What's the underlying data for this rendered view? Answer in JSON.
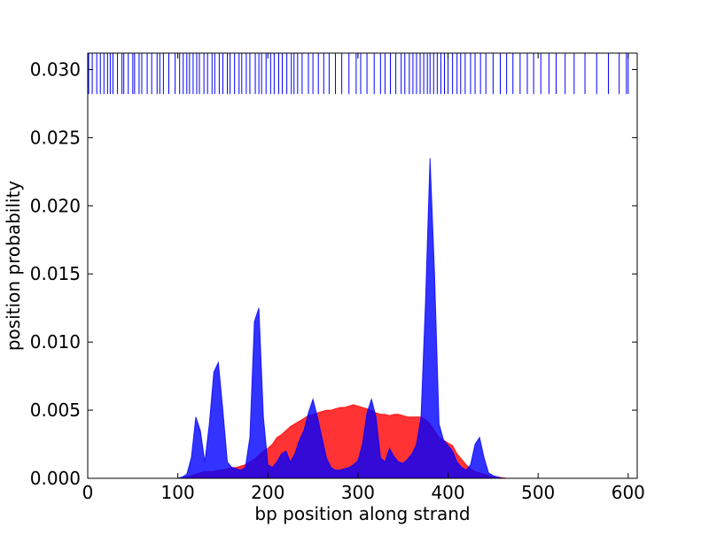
{
  "chart_data": {
    "type": "area",
    "xlabel": "bp position along strand",
    "ylabel": "position probability",
    "xlim": [
      0,
      610
    ],
    "ylim": [
      0,
      0.0312
    ],
    "xticks": [
      0,
      100,
      200,
      300,
      400,
      500,
      600
    ],
    "yticks": [
      {
        "value": 0,
        "label": "0.000"
      },
      {
        "value": 0.005,
        "label": "0.005"
      },
      {
        "value": 0.01,
        "label": "0.010"
      },
      {
        "value": 0.015,
        "label": "0.015"
      },
      {
        "value": 0.02,
        "label": "0.020"
      },
      {
        "value": 0.025,
        "label": "0.025"
      },
      {
        "value": 0.03,
        "label": "0.030"
      }
    ],
    "x": [
      100,
      105,
      110,
      115,
      120,
      125,
      130,
      135,
      140,
      145,
      150,
      155,
      160,
      165,
      170,
      175,
      180,
      185,
      190,
      195,
      200,
      205,
      210,
      215,
      220,
      225,
      230,
      235,
      240,
      245,
      250,
      255,
      260,
      265,
      270,
      275,
      280,
      285,
      290,
      295,
      300,
      305,
      310,
      315,
      320,
      325,
      330,
      335,
      340,
      345,
      350,
      355,
      360,
      365,
      370,
      375,
      380,
      385,
      390,
      395,
      400,
      405,
      410,
      415,
      420,
      425,
      430,
      435,
      440,
      445,
      450,
      455,
      460,
      465,
      470,
      475,
      480
    ],
    "series": [
      {
        "color": "#ff0000",
        "values": [
          0,
          0,
          0.0001,
          0.0002,
          0.0003,
          0.0004,
          0.0005,
          0.0005,
          0.0005,
          0.0006,
          0.0006,
          0.0007,
          0.0008,
          0.0008,
          0.0009,
          0.001,
          0.0012,
          0.0014,
          0.0017,
          0.002,
          0.0022,
          0.0025,
          0.003,
          0.0032,
          0.0035,
          0.0038,
          0.004,
          0.0042,
          0.0044,
          0.0046,
          0.0047,
          0.0048,
          0.0049,
          0.005,
          0.005,
          0.0051,
          0.0052,
          0.0052,
          0.0053,
          0.0054,
          0.0053,
          0.0052,
          0.0051,
          0.005,
          0.0048,
          0.0047,
          0.0047,
          0.0046,
          0.0047,
          0.0047,
          0.0046,
          0.0045,
          0.0045,
          0.0045,
          0.0045,
          0.0043,
          0.004,
          0.0035,
          0.003,
          0.0028,
          0.0026,
          0.0024,
          0.0018,
          0.0014,
          0.001,
          0.0007,
          0.0005,
          0.0004,
          0.0003,
          0.0002,
          0.0001,
          0.0001,
          5e-05,
          0,
          0,
          0,
          0
        ]
      },
      {
        "color": "#0000ff",
        "values": [
          0,
          0.0001,
          0.0003,
          0.0015,
          0.0045,
          0.0035,
          0.0012,
          0.004,
          0.0078,
          0.0085,
          0.005,
          0.0012,
          0.0008,
          0.0007,
          0.0006,
          0.0008,
          0.003,
          0.0115,
          0.0125,
          0.0045,
          0.001,
          0.0008,
          0.0012,
          0.0018,
          0.002,
          0.0012,
          0.0018,
          0.0028,
          0.0035,
          0.0048,
          0.0058,
          0.0045,
          0.003,
          0.0015,
          0.0008,
          0.0006,
          0.0006,
          0.0007,
          0.0008,
          0.001,
          0.0013,
          0.0025,
          0.0048,
          0.0058,
          0.0045,
          0.0015,
          0.0012,
          0.0022,
          0.0016,
          0.0012,
          0.0011,
          0.0014,
          0.0018,
          0.0025,
          0.0045,
          0.013,
          0.0235,
          0.015,
          0.004,
          0.0028,
          0.0024,
          0.002,
          0.0012,
          0.0008,
          0.0006,
          0.001,
          0.0025,
          0.003,
          0.0015,
          0.0004,
          0.0002,
          0.0001,
          0,
          0,
          0,
          0,
          0
        ]
      }
    ],
    "rug": {
      "color": "#0000ff",
      "ylim": [
        0.0282,
        0.0312
      ],
      "x": [
        1,
        5,
        10,
        14,
        18,
        22,
        25,
        28,
        33,
        38,
        40,
        45,
        50,
        52,
        57,
        60,
        66,
        71,
        77,
        80,
        84,
        90,
        97,
        102,
        106,
        110,
        113,
        117,
        121,
        124,
        129,
        133,
        138,
        141,
        146,
        150,
        155,
        158,
        163,
        168,
        171,
        176,
        180,
        186,
        190,
        193,
        198,
        203,
        207,
        212,
        216,
        221,
        226,
        229,
        233,
        238,
        245,
        250,
        256,
        262,
        268,
        275,
        282,
        290,
        298,
        303,
        310,
        318,
        325,
        330,
        336,
        342,
        348,
        352,
        357,
        361,
        365,
        369,
        373,
        377,
        380,
        384,
        388,
        392,
        396,
        400,
        405,
        410,
        414,
        419,
        425,
        430,
        436,
        442,
        450,
        458,
        465,
        472,
        480,
        488,
        495,
        503,
        512,
        520,
        530,
        540,
        552,
        565,
        578,
        590,
        598,
        600
      ]
    }
  }
}
